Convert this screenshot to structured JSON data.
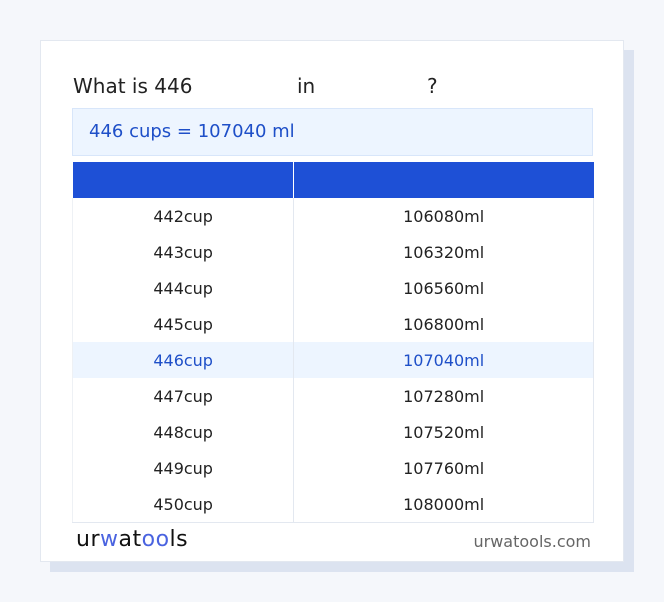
{
  "title": {
    "prefix": "What is 446",
    "middle": "in",
    "suffix": "?"
  },
  "result": "446 cups = 107040 ml",
  "table": {
    "headers": [
      "",
      ""
    ],
    "rows": [
      {
        "from": "442cup",
        "to": "106080ml"
      },
      {
        "from": "443cup",
        "to": "106320ml"
      },
      {
        "from": "444cup",
        "to": "106560ml"
      },
      {
        "from": "445cup",
        "to": "106800ml"
      },
      {
        "from": "446cup",
        "to": "107040ml",
        "highlight": true
      },
      {
        "from": "447cup",
        "to": "107280ml"
      },
      {
        "from": "448cup",
        "to": "107520ml"
      },
      {
        "from": "449cup",
        "to": "107760ml"
      },
      {
        "from": "450cup",
        "to": "108000ml"
      }
    ]
  },
  "footer": {
    "logo": "urwatools",
    "site": "urwatools.com"
  },
  "colors": {
    "accent": "#1e50d6",
    "highlight_bg": "#edf5ff",
    "highlight_text": "#1e4fc8"
  }
}
